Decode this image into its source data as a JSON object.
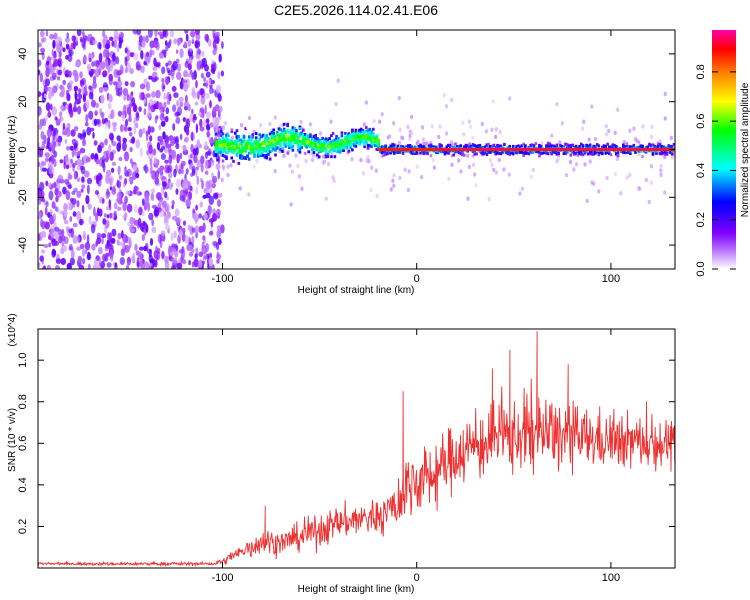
{
  "title": "C2E5.2026.114.02.41.E06",
  "chart_data": [
    {
      "type": "heatmap",
      "xlabel": "Height of straight line (km)",
      "ylabel": "Frequency (Hz)",
      "xlim": [
        -195,
        133
      ],
      "ylim": [
        -50,
        50
      ],
      "xticks": [
        -100,
        0,
        100
      ],
      "yticks": [
        -40,
        -20,
        0,
        20,
        40
      ],
      "colorbar": {
        "label": "Normalized spectral amplitude",
        "ticks": [
          0.0,
          0.2,
          0.4,
          0.6,
          0.8
        ],
        "range": [
          0,
          0.97
        ],
        "colors": [
          "#ffffff",
          "#7f00ff",
          "#0000ff",
          "#00ffff",
          "#00ff00",
          "#ffff00",
          "#ff7f00",
          "#ff0000",
          "#ff00ff"
        ]
      },
      "regions": [
        {
          "name": "noise",
          "x_range": [
            -195,
            -103
          ],
          "freq_spread": 50,
          "amplitude": 0.1
        },
        {
          "name": "signal-onset",
          "x_range": [
            -103,
            -20
          ],
          "center_freq": [
            0,
            6
          ],
          "amplitude": 0.6
        },
        {
          "name": "steady-tone",
          "x_range": [
            -20,
            133
          ],
          "center_freq": 0,
          "amplitude": 0.97
        }
      ]
    },
    {
      "type": "line",
      "xlabel": "Height of straight line (km)",
      "ylabel": "SNR (10 * v/v)",
      "multiplier": "(x10^4)",
      "xlim": [
        -195,
        133
      ],
      "ylim": [
        0,
        1.15
      ],
      "xticks": [
        -100,
        0,
        100
      ],
      "yticks": [
        0.2,
        0.4,
        0.6,
        0.8,
        1.0
      ],
      "series": [
        {
          "name": "SNR",
          "color": "#ee3030",
          "envelope": [
            {
              "x": -195,
              "mean": 0.02,
              "amp": 0.01
            },
            {
              "x": -105,
              "mean": 0.02,
              "amp": 0.01
            },
            {
              "x": -100,
              "mean": 0.03,
              "amp": 0.02
            },
            {
              "x": -90,
              "mean": 0.08,
              "amp": 0.05
            },
            {
              "x": -80,
              "mean": 0.13,
              "amp": 0.09
            },
            {
              "x": -70,
              "mean": 0.12,
              "amp": 0.07
            },
            {
              "x": -50,
              "mean": 0.18,
              "amp": 0.1
            },
            {
              "x": -40,
              "mean": 0.22,
              "amp": 0.1
            },
            {
              "x": -20,
              "mean": 0.25,
              "amp": 0.12
            },
            {
              "x": -10,
              "mean": 0.3,
              "amp": 0.15
            },
            {
              "x": -5,
              "mean": 0.4,
              "amp": 0.2
            },
            {
              "x": 10,
              "mean": 0.45,
              "amp": 0.2
            },
            {
              "x": 20,
              "mean": 0.55,
              "amp": 0.2
            },
            {
              "x": 40,
              "mean": 0.62,
              "amp": 0.22
            },
            {
              "x": 60,
              "mean": 0.65,
              "amp": 0.25
            },
            {
              "x": 90,
              "mean": 0.62,
              "amp": 0.18
            },
            {
              "x": 133,
              "mean": 0.6,
              "amp": 0.15
            }
          ],
          "peaks": [
            {
              "x": -78,
              "y": 0.3
            },
            {
              "x": -7,
              "y": 0.85
            },
            {
              "x": 39,
              "y": 0.96
            },
            {
              "x": 48,
              "y": 1.05
            },
            {
              "x": 62,
              "y": 1.14
            },
            {
              "x": 78,
              "y": 0.98
            }
          ]
        }
      ]
    }
  ]
}
